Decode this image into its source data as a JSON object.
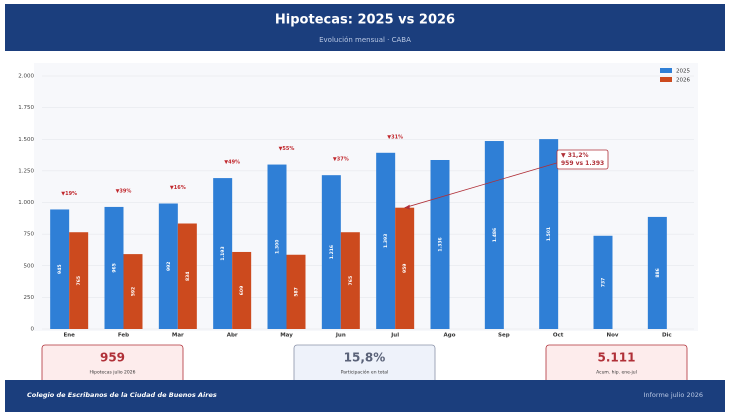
{
  "header": {
    "title": "Hipotecas: 2025 vs 2026",
    "subtitle": "Evolución mensual · CABA"
  },
  "chart_data": {
    "type": "bar",
    "categories": [
      "Ene",
      "Feb",
      "Mar",
      "Abr",
      "May",
      "Jun",
      "Jul",
      "Ago",
      "Sep",
      "Oct",
      "Nov",
      "Dic"
    ],
    "series": [
      {
        "name": "2025",
        "color": "#2f7fd6",
        "values": [
          945,
          965,
          992,
          1193,
          1300,
          1216,
          1393,
          1336,
          1486,
          1501,
          737,
          886
        ],
        "value_labels": [
          "945",
          "965",
          "992",
          "1.193",
          "1.300",
          "1.216",
          "1.393",
          "1.336",
          "1.486",
          "1.501",
          "737",
          "886"
        ]
      },
      {
        "name": "2026",
        "color": "#cc4a1e",
        "values": [
          765,
          592,
          834,
          609,
          587,
          765,
          959,
          null,
          null,
          null,
          null,
          null
        ],
        "value_labels": [
          "765",
          "592",
          "834",
          "609",
          "587",
          "765",
          "959",
          null,
          null,
          null,
          null,
          null
        ]
      }
    ],
    "change_labels": [
      "▼19%",
      "▼39%",
      "▼16%",
      "▼49%",
      "▼55%",
      "▼37%",
      "▼31%",
      null,
      null,
      null,
      null,
      null
    ],
    "callout": [
      "▼ 31,2%",
      "959 vs 1.393"
    ],
    "ylim": [
      0,
      2000
    ],
    "yticks": [
      0,
      250,
      500,
      750,
      {
        "value": 1000,
        "label": "1.000"
      },
      {
        "value": 1250,
        "label": "1.250"
      },
      {
        "value": 1500,
        "label": "1.500"
      },
      {
        "value": 1750,
        "label": "1.750"
      },
      {
        "value": 2000,
        "label": "2.000"
      }
    ],
    "grid": true,
    "legend": "top-right"
  },
  "kpis": [
    {
      "value": "959",
      "label": "Hipotecas julio 2026"
    },
    {
      "value": "15,8%",
      "label": "Participación en total"
    },
    {
      "value": "5.111",
      "label": "Acum. hip. ene-jul"
    }
  ],
  "footer": {
    "left": "Colegio de Escribanos de la Ciudad de Buenos Aires",
    "right": "Informe julio 2026"
  }
}
